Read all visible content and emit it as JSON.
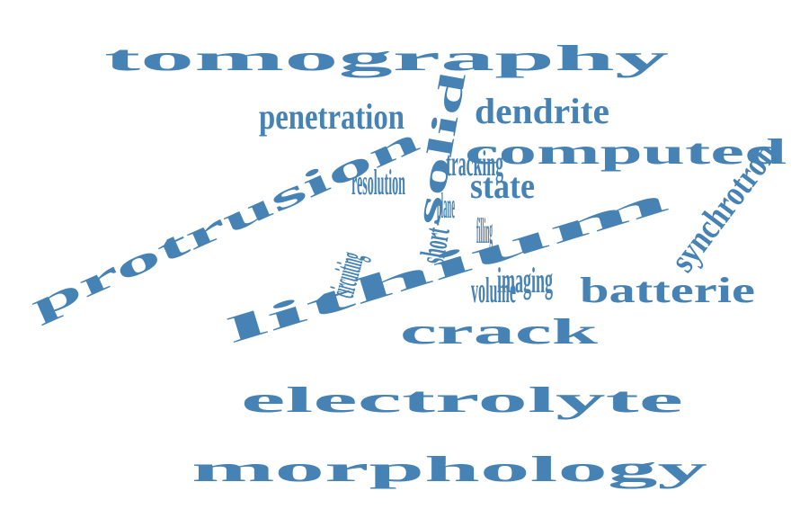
{
  "colors": {
    "word": "#4682B4",
    "background": "#FFFFFF"
  },
  "words": {
    "tomography": "tomography",
    "solid": "solid",
    "dendrite": "dendrite",
    "penetration": "penetration",
    "computed": "computed",
    "protrusion": "protrusion",
    "tracking": "tracking",
    "resolution": "resolution",
    "state": "state",
    "synchrotron": "synchrotron",
    "plane": "plane",
    "filling": "filling",
    "short": "short",
    "circuiting": "circuiting",
    "lithium": "lithium",
    "imaging": "imaging",
    "volume": "volume",
    "batterie": "batterie",
    "crack": "crack",
    "electrolyte": "electrolyte",
    "morphology": "morphology"
  }
}
